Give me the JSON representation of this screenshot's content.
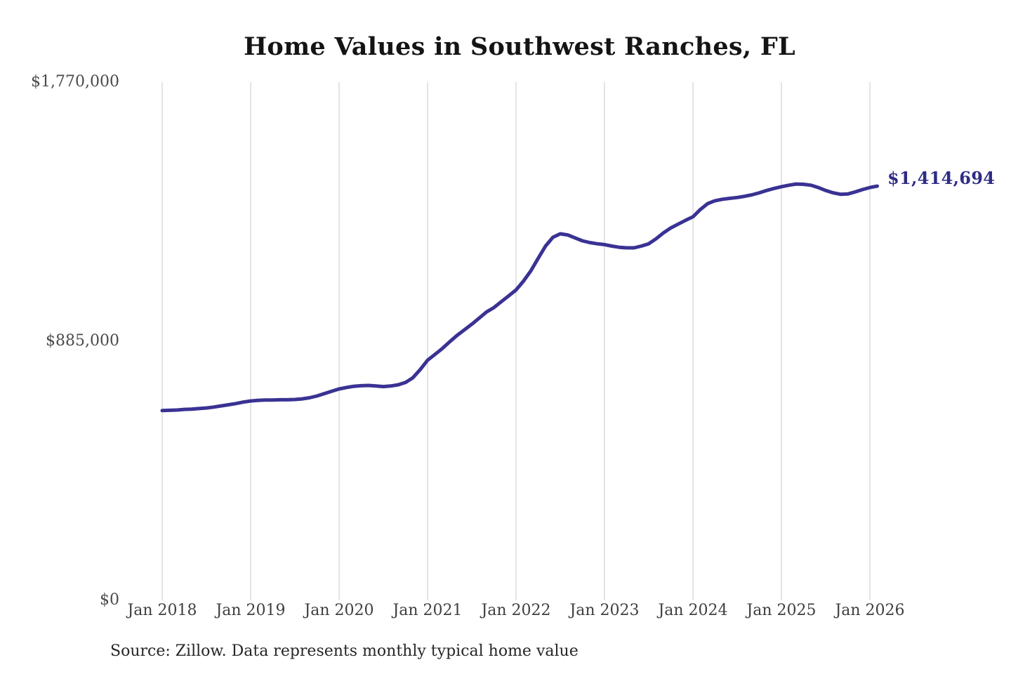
{
  "header": {
    "title": "Home Values in Southwest Ranches, FL"
  },
  "footer": {
    "source": "Source: Zillow. Data represents monthly typical home value"
  },
  "chart_data": {
    "type": "line",
    "title": "Home Values in Southwest Ranches, FL",
    "xlabel": "",
    "ylabel": "",
    "ylim": [
      0,
      1770000
    ],
    "grid": "vertical-only",
    "legend": "none",
    "line_color": "#3a3293",
    "gridline_color": "#c9c9c9",
    "end_label": "$1,414,694",
    "end_value": 1414694,
    "y_ticks": [
      {
        "value": 0,
        "label": "$0"
      },
      {
        "value": 885000,
        "label": "$885,000"
      },
      {
        "value": 1770000,
        "label": "$1,770,000"
      }
    ],
    "x_tick_labels": [
      "Jan 2018",
      "Jan 2019",
      "Jan 2020",
      "Jan 2021",
      "Jan 2022",
      "Jan 2023",
      "Jan 2024",
      "Jan 2025",
      "Jan 2026"
    ],
    "x": [
      "2018-01",
      "2018-02",
      "2018-03",
      "2018-04",
      "2018-05",
      "2018-06",
      "2018-07",
      "2018-08",
      "2018-09",
      "2018-10",
      "2018-11",
      "2018-12",
      "2019-01",
      "2019-02",
      "2019-03",
      "2019-04",
      "2019-05",
      "2019-06",
      "2019-07",
      "2019-08",
      "2019-09",
      "2019-10",
      "2019-11",
      "2019-12",
      "2020-01",
      "2020-02",
      "2020-03",
      "2020-04",
      "2020-05",
      "2020-06",
      "2020-07",
      "2020-08",
      "2020-09",
      "2020-10",
      "2020-11",
      "2020-12",
      "2021-01",
      "2021-02",
      "2021-03",
      "2021-04",
      "2021-05",
      "2021-06",
      "2021-07",
      "2021-08",
      "2021-09",
      "2021-10",
      "2021-11",
      "2021-12",
      "2022-01",
      "2022-02",
      "2022-03",
      "2022-04",
      "2022-05",
      "2022-06",
      "2022-07",
      "2022-08",
      "2022-09",
      "2022-10",
      "2022-11",
      "2022-12",
      "2023-01",
      "2023-02",
      "2023-03",
      "2023-04",
      "2023-05",
      "2023-06",
      "2023-07",
      "2023-08",
      "2023-09",
      "2023-10",
      "2023-11",
      "2023-12",
      "2024-01",
      "2024-02",
      "2024-03",
      "2024-04",
      "2024-05",
      "2024-06",
      "2024-07",
      "2024-08",
      "2024-09",
      "2024-10",
      "2024-11",
      "2024-12",
      "2025-01",
      "2025-02",
      "2025-03",
      "2025-04",
      "2025-05",
      "2025-06",
      "2025-07",
      "2025-08",
      "2025-09",
      "2025-10",
      "2025-11",
      "2025-12",
      "2026-01",
      "2026-02"
    ],
    "values": [
      648000,
      649000,
      650000,
      652000,
      653000,
      655000,
      657000,
      660000,
      664000,
      668000,
      672000,
      677000,
      681000,
      683000,
      684000,
      684000,
      685000,
      685000,
      686000,
      688000,
      692000,
      698000,
      706000,
      714000,
      722000,
      727000,
      731000,
      733000,
      734000,
      732000,
      730000,
      732000,
      736000,
      744000,
      760000,
      788000,
      820000,
      840000,
      860000,
      883000,
      905000,
      924000,
      943000,
      964000,
      985000,
      1000000,
      1020000,
      1040000,
      1060000,
      1090000,
      1125000,
      1168000,
      1210000,
      1240000,
      1252000,
      1248000,
      1238000,
      1228000,
      1222000,
      1218000,
      1215000,
      1210000,
      1206000,
      1204000,
      1204000,
      1210000,
      1218000,
      1235000,
      1255000,
      1272000,
      1285000,
      1298000,
      1310000,
      1335000,
      1355000,
      1365000,
      1370000,
      1373000,
      1376000,
      1380000,
      1385000,
      1392000,
      1400000,
      1407000,
      1413000,
      1418000,
      1422000,
      1421000,
      1418000,
      1410000,
      1400000,
      1392000,
      1387000,
      1388000,
      1395000,
      1403000,
      1410000,
      1414694
    ]
  }
}
